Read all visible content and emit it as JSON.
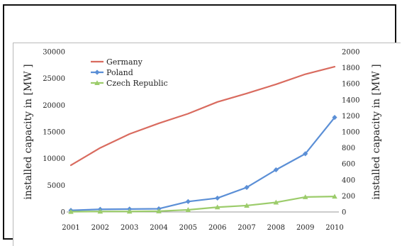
{
  "chart_data": {
    "type": "line",
    "categories": [
      "2001",
      "2002",
      "2003",
      "2004",
      "2005",
      "2006",
      "2007",
      "2008",
      "2009",
      "2010"
    ],
    "ylabel_left": "installed capacity in [MW ]",
    "ylabel_right": "installed capacity in [MW ]",
    "ylim_left": [
      0,
      30000
    ],
    "ylim_right": [
      0,
      2000
    ],
    "yticks_left": [
      0,
      5000,
      10000,
      15000,
      20000,
      25000,
      30000
    ],
    "yticks_right": [
      0,
      200,
      400,
      600,
      800,
      1000,
      1200,
      1400,
      1600,
      1800,
      2000
    ],
    "legend_position": "top-left",
    "grid": false,
    "series": [
      {
        "name": "Germany",
        "axis": "left",
        "color": "#d96b5f",
        "marker": "none",
        "values": [
          8750,
          12000,
          14600,
          16600,
          18400,
          20600,
          22200,
          23900,
          25800,
          27200
        ]
      },
      {
        "name": "Poland",
        "axis": "left",
        "color": "#5b8fd6",
        "marker": "diamond",
        "values": [
          300,
          500,
          550,
          600,
          1950,
          2600,
          4600,
          7900,
          10900,
          17700
        ]
      },
      {
        "name": "Czech Republic",
        "axis": "left",
        "color": "#9ccc6b",
        "marker": "triangle",
        "values": [
          50,
          100,
          100,
          150,
          400,
          900,
          1200,
          1800,
          2800,
          2900
        ]
      }
    ]
  }
}
